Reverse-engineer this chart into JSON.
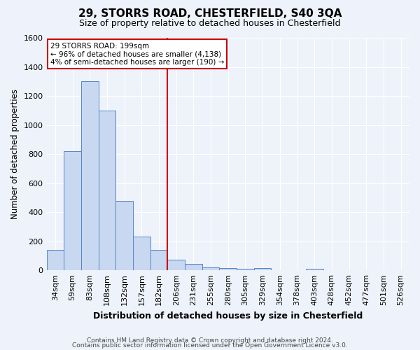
{
  "title": "29, STORRS ROAD, CHESTERFIELD, S40 3QA",
  "subtitle": "Size of property relative to detached houses in Chesterfield",
  "xlabel": "Distribution of detached houses by size in Chesterfield",
  "ylabel": "Number of detached properties",
  "footer1": "Contains HM Land Registry data © Crown copyright and database right 2024.",
  "footer2": "Contains public sector information licensed under the Open Government Licence v3.0.",
  "bin_labels": [
    "34sqm",
    "59sqm",
    "83sqm",
    "108sqm",
    "132sqm",
    "157sqm",
    "182sqm",
    "206sqm",
    "231sqm",
    "255sqm",
    "280sqm",
    "305sqm",
    "329sqm",
    "354sqm",
    "378sqm",
    "403sqm",
    "428sqm",
    "452sqm",
    "477sqm",
    "501sqm",
    "526sqm"
  ],
  "bar_values": [
    140,
    820,
    1300,
    1100,
    480,
    230,
    140,
    75,
    45,
    22,
    13,
    10,
    13,
    0,
    0,
    10,
    0,
    0,
    0,
    0,
    0
  ],
  "bar_color": "#c8d8f0",
  "bar_edge_color": "#5585c8",
  "ylim": [
    0,
    1600
  ],
  "yticks": [
    0,
    200,
    400,
    600,
    800,
    1000,
    1200,
    1400,
    1600
  ],
  "vline_x": 7,
  "vline_color": "#cc0000",
  "annotation_text": "29 STORRS ROAD: 199sqm\n← 96% of detached houses are smaller (4,138)\n4% of semi-detached houses are larger (190) →",
  "annotation_box_color": "#ffffff",
  "annotation_box_edge": "#cc0000",
  "background_color": "#eef2fa",
  "grid_color": "#ffffff",
  "title_fontsize": 11,
  "subtitle_fontsize": 9,
  "ylabel_fontsize": 8.5,
  "xlabel_fontsize": 9,
  "tick_fontsize": 8,
  "ann_fontsize": 7.5,
  "footer_fontsize": 6.5
}
